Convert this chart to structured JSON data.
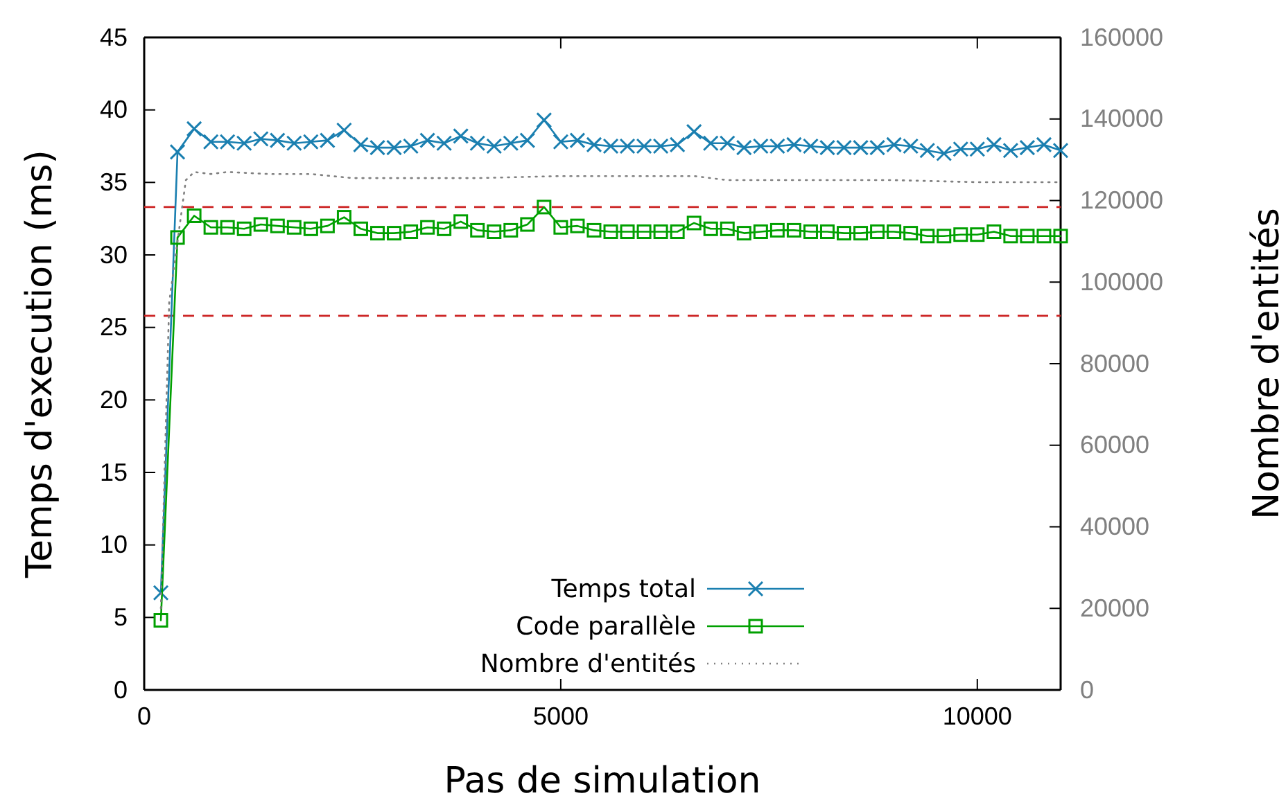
{
  "chart_data": {
    "type": "line",
    "xlabel": "Pas de simulation",
    "ylabel": "Temps d'execution (ms)",
    "y2label": "Nombre d'entités",
    "x": [
      200,
      400,
      600,
      800,
      1000,
      1200,
      1400,
      1600,
      1800,
      2000,
      2200,
      2400,
      2600,
      2800,
      3000,
      3200,
      3400,
      3600,
      3800,
      4000,
      4200,
      4400,
      4600,
      4800,
      5000,
      5200,
      5400,
      5600,
      5800,
      6000,
      6200,
      6400,
      6600,
      6800,
      7000,
      7200,
      7400,
      7600,
      7800,
      8000,
      8200,
      8400,
      8600,
      8800,
      9000,
      9200,
      9400,
      9600,
      9800,
      10000,
      10200,
      10400,
      10600,
      10800,
      11000
    ],
    "series": [
      {
        "name": "Temps total",
        "color": "#1a7fb0",
        "marker": "cross",
        "values": [
          6.7,
          37.1,
          38.7,
          37.8,
          37.8,
          37.7,
          38.0,
          37.9,
          37.7,
          37.8,
          37.9,
          38.6,
          37.6,
          37.4,
          37.4,
          37.5,
          37.9,
          37.7,
          38.2,
          37.7,
          37.5,
          37.7,
          37.9,
          39.3,
          37.8,
          37.9,
          37.6,
          37.5,
          37.5,
          37.5,
          37.5,
          37.6,
          38.5,
          37.7,
          37.7,
          37.4,
          37.5,
          37.5,
          37.6,
          37.5,
          37.4,
          37.4,
          37.4,
          37.4,
          37.6,
          37.5,
          37.2,
          37.0,
          37.3,
          37.3,
          37.6,
          37.2,
          37.4,
          37.6,
          37.2
        ]
      },
      {
        "name": "Code parallèle",
        "color": "#00a000",
        "marker": "square",
        "values": [
          4.8,
          31.2,
          32.7,
          31.9,
          31.9,
          31.8,
          32.1,
          32.0,
          31.9,
          31.8,
          32.0,
          32.6,
          31.8,
          31.5,
          31.5,
          31.6,
          31.9,
          31.8,
          32.3,
          31.7,
          31.6,
          31.7,
          32.1,
          33.3,
          31.9,
          32.0,
          31.7,
          31.6,
          31.6,
          31.6,
          31.6,
          31.6,
          32.2,
          31.8,
          31.8,
          31.5,
          31.6,
          31.7,
          31.7,
          31.6,
          31.6,
          31.5,
          31.5,
          31.6,
          31.6,
          31.5,
          31.3,
          31.3,
          31.4,
          31.4,
          31.6,
          31.3,
          31.3,
          31.3,
          31.3
        ]
      },
      {
        "name": "Nombre d'entités",
        "color": "#808080",
        "marker": "none",
        "line_style": "dotted",
        "axis": "y2",
        "x": [
          200,
          300,
          400,
          500,
          600,
          800,
          1000,
          1500,
          2000,
          2500,
          3000,
          4000,
          5000,
          6000,
          6600,
          7000,
          8000,
          9000,
          10000,
          11000
        ],
        "values": [
          20000,
          95000,
          110000,
          125000,
          127000,
          126500,
          127000,
          126500,
          126500,
          125500,
          125500,
          125500,
          126000,
          126000,
          126000,
          125000,
          125000,
          125000,
          124500,
          124500
        ]
      }
    ],
    "xlim": [
      0,
      11000
    ],
    "xticks": [
      0,
      5000,
      10000
    ],
    "ylim": [
      0,
      45
    ],
    "yticks": [
      0,
      5,
      10,
      15,
      20,
      25,
      30,
      35,
      40,
      45
    ],
    "y2lim": [
      0,
      160000
    ],
    "y2ticks": [
      0,
      20000,
      40000,
      60000,
      80000,
      100000,
      120000,
      140000,
      160000
    ],
    "ref_lines": [
      {
        "axis": "y",
        "value": 33.3,
        "color": "#cc2222",
        "line_style": "dashed"
      },
      {
        "axis": "y",
        "value": 25.8,
        "color": "#cc2222",
        "line_style": "dashed"
      }
    ],
    "legend": "bottom right"
  }
}
